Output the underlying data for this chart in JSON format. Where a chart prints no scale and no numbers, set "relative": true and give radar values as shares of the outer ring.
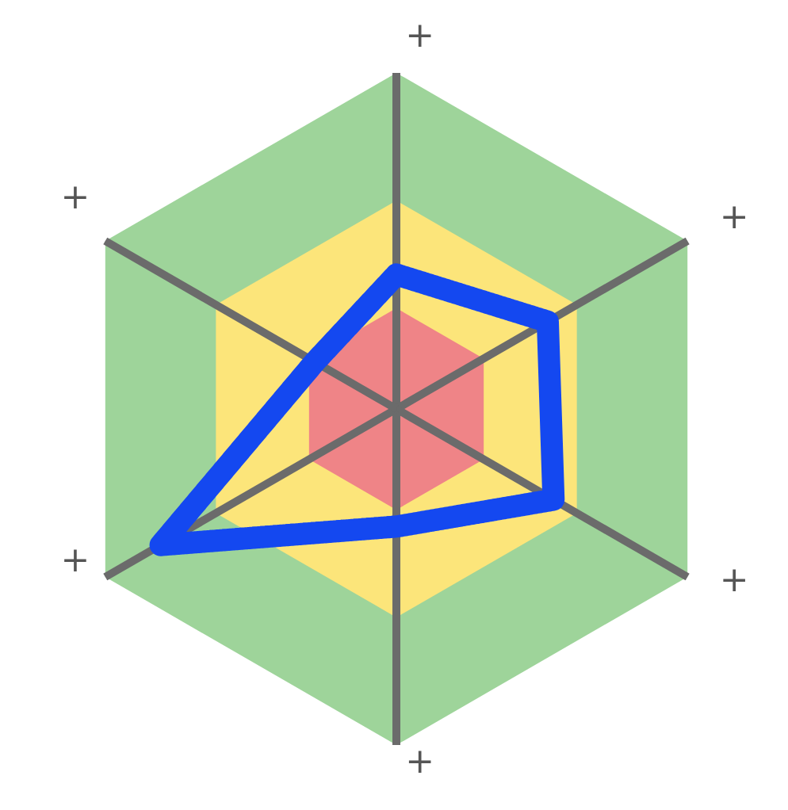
{
  "chart_data": {
    "type": "radar",
    "relative": true,
    "grid": true,
    "line_style": "solid",
    "categories": [
      "+",
      "+",
      "+",
      "+",
      "+",
      "+"
    ],
    "series": [
      {
        "color": "#1448f0",
        "values": [
          0.4,
          0.52,
          0.54,
          0.35,
          0.81,
          0.28
        ]
      }
    ]
  }
}
